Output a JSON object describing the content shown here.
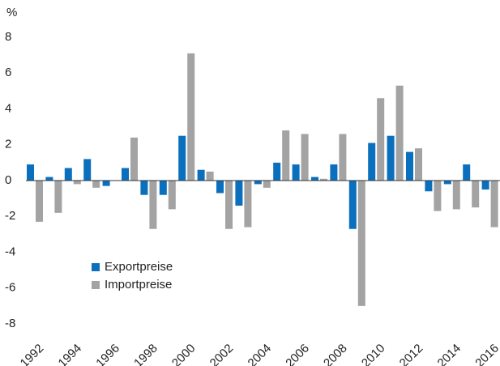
{
  "chart_data": {
    "type": "bar",
    "y_label": "%",
    "categories": [
      "1992",
      null,
      "1994",
      null,
      "1996",
      null,
      "1998",
      null,
      "2000",
      null,
      "2002",
      null,
      "2004",
      null,
      "2006",
      null,
      "2008",
      null,
      "2010",
      null,
      "2012",
      null,
      "2014",
      null,
      "2016"
    ],
    "series": [
      {
        "name": "Exportpreise",
        "color": "#0a6fbd",
        "values": [
          0.9,
          0.2,
          0.7,
          1.2,
          -0.3,
          0.7,
          -0.8,
          -0.8,
          2.5,
          0.6,
          -0.7,
          -1.4,
          -0.2,
          1.0,
          0.9,
          0.2,
          0.9,
          -2.7,
          2.1,
          2.5,
          1.6,
          -0.6,
          -0.2,
          0.9,
          -0.5
        ]
      },
      {
        "name": "Importpreise",
        "color": "#a3a3a3",
        "values": [
          -2.3,
          -1.8,
          -0.2,
          -0.4,
          0,
          2.4,
          -2.7,
          -1.6,
          7.1,
          0.5,
          -2.7,
          -2.6,
          -0.4,
          2.8,
          2.6,
          0.1,
          2.6,
          -7.0,
          4.6,
          5.3,
          1.8,
          -1.7,
          -1.6,
          -1.5,
          -2.6
        ]
      }
    ],
    "ylim": [
      -8,
      8
    ],
    "yticks": [
      -8,
      -6,
      -4,
      -2,
      0,
      2,
      4,
      6,
      8
    ],
    "legend": "lower left"
  }
}
